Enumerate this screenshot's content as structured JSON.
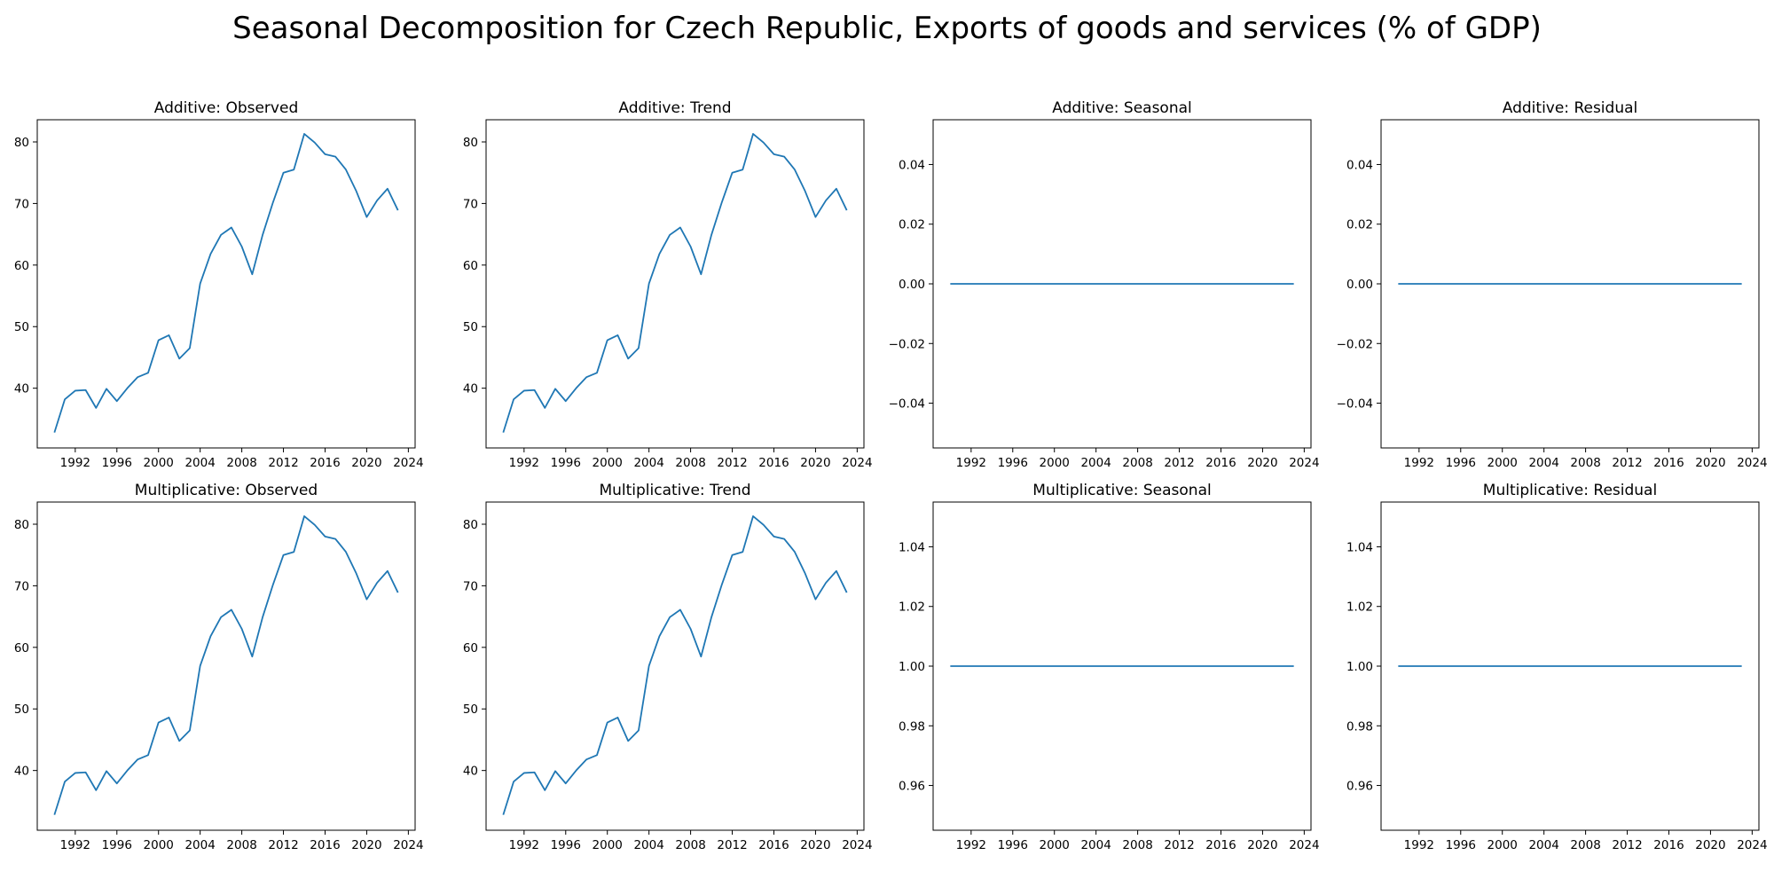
{
  "title": "Seasonal Decomposition for Czech Republic, Exports of goods and services (% of GDP)",
  "colors": {
    "line": "#1f77b4"
  },
  "chart_data": {
    "type": "line",
    "x_ticks": [
      1992,
      1996,
      2000,
      2004,
      2008,
      2012,
      2016,
      2020,
      2024
    ],
    "xlim": [
      1988.35,
      2024.65
    ],
    "x": [
      1990,
      1991,
      1992,
      1993,
      1994,
      1995,
      1996,
      1997,
      1998,
      1999,
      2000,
      2001,
      2002,
      2003,
      2004,
      2005,
      2006,
      2007,
      2008,
      2009,
      2010,
      2011,
      2012,
      2013,
      2014,
      2015,
      2016,
      2017,
      2018,
      2019,
      2020,
      2021,
      2022,
      2023
    ],
    "panels": [
      {
        "title": "Additive: Observed",
        "ylim": [
          30.3,
          83.6
        ],
        "y_ticks": [
          40,
          50,
          60,
          70,
          80
        ],
        "y_tick_labels": [
          "40",
          "50",
          "60",
          "70",
          "80"
        ],
        "values": [
          32.8,
          38.2,
          39.6,
          39.7,
          36.8,
          39.9,
          37.9,
          40.0,
          41.8,
          42.5,
          47.8,
          48.6,
          44.8,
          46.5,
          57.0,
          61.8,
          64.9,
          66.1,
          63.0,
          58.5,
          64.9,
          70.2,
          75.0,
          75.5,
          81.3,
          79.9,
          78.0,
          77.6,
          75.5,
          72.0,
          67.8,
          70.5,
          72.4,
          68.9
        ]
      },
      {
        "title": "Additive: Trend",
        "ylim": [
          30.3,
          83.6
        ],
        "y_ticks": [
          40,
          50,
          60,
          70,
          80
        ],
        "y_tick_labels": [
          "40",
          "50",
          "60",
          "70",
          "80"
        ],
        "values": [
          32.8,
          38.2,
          39.6,
          39.7,
          36.8,
          39.9,
          37.9,
          40.0,
          41.8,
          42.5,
          47.8,
          48.6,
          44.8,
          46.5,
          57.0,
          61.8,
          64.9,
          66.1,
          63.0,
          58.5,
          64.9,
          70.2,
          75.0,
          75.5,
          81.3,
          79.9,
          78.0,
          77.6,
          75.5,
          72.0,
          67.8,
          70.5,
          72.4,
          68.9
        ]
      },
      {
        "title": "Additive: Seasonal",
        "ylim": [
          -0.055,
          0.055
        ],
        "y_ticks": [
          -0.04,
          -0.02,
          0.0,
          0.02,
          0.04
        ],
        "y_tick_labels": [
          "−0.04",
          "−0.02",
          "0.00",
          "0.02",
          "0.04"
        ],
        "values": [
          0,
          0,
          0,
          0,
          0,
          0,
          0,
          0,
          0,
          0,
          0,
          0,
          0,
          0,
          0,
          0,
          0,
          0,
          0,
          0,
          0,
          0,
          0,
          0,
          0,
          0,
          0,
          0,
          0,
          0,
          0,
          0,
          0,
          0
        ]
      },
      {
        "title": "Additive: Residual",
        "ylim": [
          -0.055,
          0.055
        ],
        "y_ticks": [
          -0.04,
          -0.02,
          0.0,
          0.02,
          0.04
        ],
        "y_tick_labels": [
          "−0.04",
          "−0.02",
          "0.00",
          "0.02",
          "0.04"
        ],
        "values": [
          0,
          0,
          0,
          0,
          0,
          0,
          0,
          0,
          0,
          0,
          0,
          0,
          0,
          0,
          0,
          0,
          0,
          0,
          0,
          0,
          0,
          0,
          0,
          0,
          0,
          0,
          0,
          0,
          0,
          0,
          0,
          0,
          0,
          0
        ]
      },
      {
        "title": "Multiplicative: Observed",
        "ylim": [
          30.3,
          83.6
        ],
        "y_ticks": [
          40,
          50,
          60,
          70,
          80
        ],
        "y_tick_labels": [
          "40",
          "50",
          "60",
          "70",
          "80"
        ],
        "values": [
          32.8,
          38.2,
          39.6,
          39.7,
          36.8,
          39.9,
          37.9,
          40.0,
          41.8,
          42.5,
          47.8,
          48.6,
          44.8,
          46.5,
          57.0,
          61.8,
          64.9,
          66.1,
          63.0,
          58.5,
          64.9,
          70.2,
          75.0,
          75.5,
          81.3,
          79.9,
          78.0,
          77.6,
          75.5,
          72.0,
          67.8,
          70.5,
          72.4,
          68.9
        ]
      },
      {
        "title": "Multiplicative: Trend",
        "ylim": [
          30.3,
          83.6
        ],
        "y_ticks": [
          40,
          50,
          60,
          70,
          80
        ],
        "y_tick_labels": [
          "40",
          "50",
          "60",
          "70",
          "80"
        ],
        "values": [
          32.8,
          38.2,
          39.6,
          39.7,
          36.8,
          39.9,
          37.9,
          40.0,
          41.8,
          42.5,
          47.8,
          48.6,
          44.8,
          46.5,
          57.0,
          61.8,
          64.9,
          66.1,
          63.0,
          58.5,
          64.9,
          70.2,
          75.0,
          75.5,
          81.3,
          79.9,
          78.0,
          77.6,
          75.5,
          72.0,
          67.8,
          70.5,
          72.4,
          68.9
        ]
      },
      {
        "title": "Multiplicative: Seasonal",
        "ylim": [
          0.945,
          1.055
        ],
        "y_ticks": [
          0.96,
          0.98,
          1.0,
          1.02,
          1.04
        ],
        "y_tick_labels": [
          "0.96",
          "0.98",
          "1.00",
          "1.02",
          "1.04"
        ],
        "values": [
          1,
          1,
          1,
          1,
          1,
          1,
          1,
          1,
          1,
          1,
          1,
          1,
          1,
          1,
          1,
          1,
          1,
          1,
          1,
          1,
          1,
          1,
          1,
          1,
          1,
          1,
          1,
          1,
          1,
          1,
          1,
          1,
          1,
          1
        ]
      },
      {
        "title": "Multiplicative: Residual",
        "ylim": [
          0.945,
          1.055
        ],
        "y_ticks": [
          0.96,
          0.98,
          1.0,
          1.02,
          1.04
        ],
        "y_tick_labels": [
          "0.96",
          "0.98",
          "1.00",
          "1.02",
          "1.04"
        ],
        "values": [
          1,
          1,
          1,
          1,
          1,
          1,
          1,
          1,
          1,
          1,
          1,
          1,
          1,
          1,
          1,
          1,
          1,
          1,
          1,
          1,
          1,
          1,
          1,
          1,
          1,
          1,
          1,
          1,
          1,
          1,
          1,
          1,
          1,
          1
        ]
      }
    ]
  }
}
